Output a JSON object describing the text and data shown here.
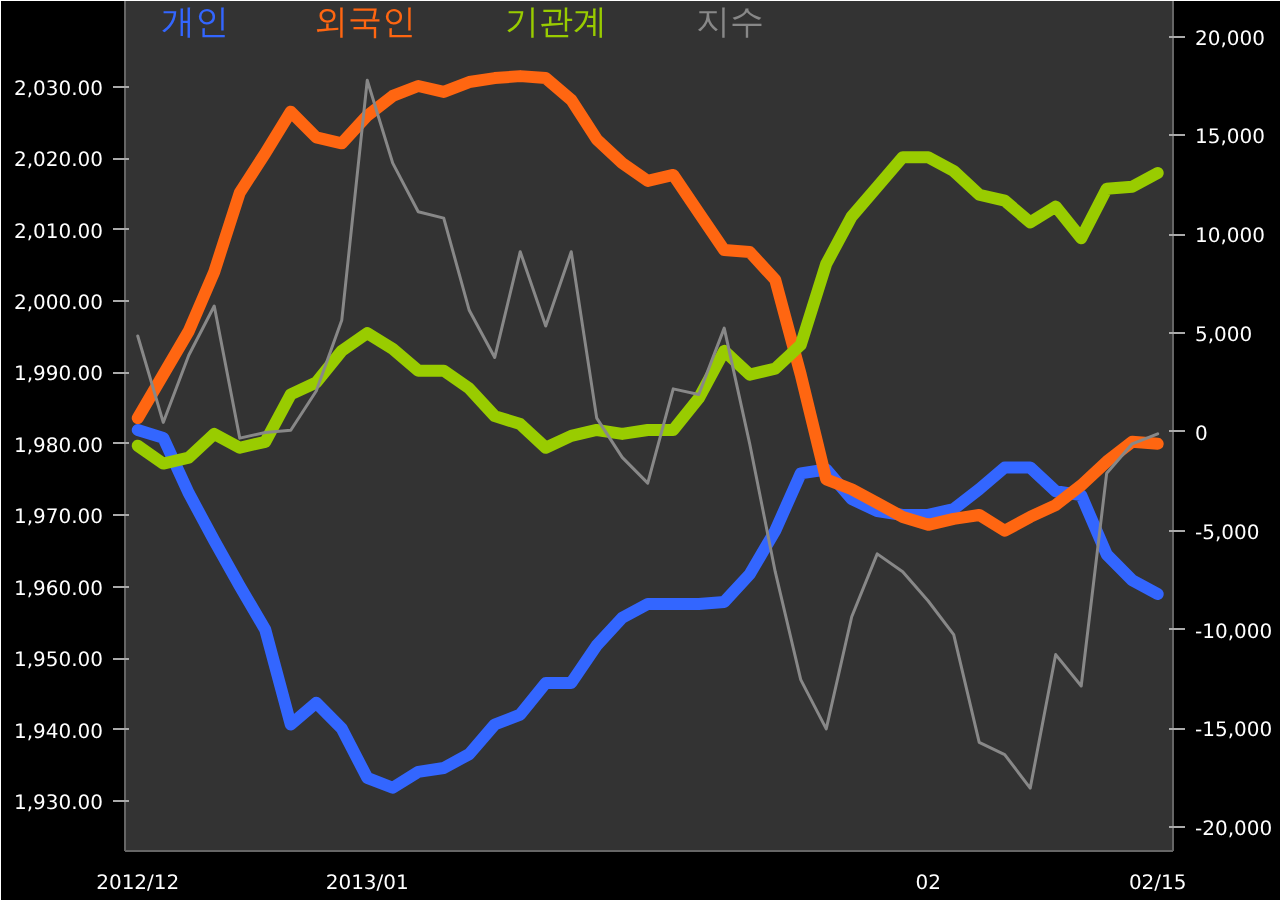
{
  "chart_data": {
    "type": "line",
    "categories": [
      "2012/12",
      null,
      null,
      null,
      null,
      null,
      null,
      null,
      null,
      "2013/01",
      null,
      null,
      null,
      null,
      null,
      null,
      null,
      null,
      null,
      null,
      null,
      null,
      null,
      null,
      null,
      null,
      null,
      null,
      null,
      null,
      null,
      "02",
      null,
      null,
      null,
      null,
      null,
      null,
      null,
      null,
      "02/15"
    ],
    "ylim": [
      1923,
      2042
    ],
    "yticks": [
      {
        "value": 1930,
        "label": "1,930.00"
      },
      {
        "value": 1940,
        "label": "1,940.00"
      },
      {
        "value": 1950,
        "label": "1,950.00"
      },
      {
        "value": 1960,
        "label": "1,960.00"
      },
      {
        "value": 1970,
        "label": "1,970.00"
      },
      {
        "value": 1980,
        "label": "1,980.00"
      },
      {
        "value": 1990,
        "label": "1,990.00"
      },
      {
        "value": 2000,
        "label": "2,000.00"
      },
      {
        "value": 2010,
        "label": "2,010.00"
      },
      {
        "value": 2020,
        "label": "2,020.00"
      },
      {
        "value": 2030,
        "label": "2,030.00"
      }
    ],
    "y2lim": [
      -21200,
      21800
    ],
    "y2ticks": [
      {
        "value": -20000,
        "label": "-20,000"
      },
      {
        "value": -15000,
        "label": "-15,000"
      },
      {
        "value": -10000,
        "label": "-10,000"
      },
      {
        "value": -5000,
        "label": "-5,000"
      },
      0,
      {
        "value": 5000,
        "label": "5,000"
      },
      {
        "value": 10000,
        "label": "10,000"
      },
      {
        "value": 15000,
        "label": "15,000"
      },
      {
        "value": 20000,
        "label": "20,000"
      }
    ],
    "series": [
      {
        "name": "개인",
        "color": "#3366ff",
        "axis": "y2",
        "values": [
          100,
          -300,
          -3100,
          -5500,
          -7800,
          -10000,
          -14800,
          -13700,
          -15000,
          -17500,
          -18000,
          -17200,
          -17000,
          -16300,
          -14800,
          -14300,
          -12700,
          -12700,
          -10800,
          -9400,
          -8700,
          -8700,
          -8700,
          -8600,
          -7200,
          -5000,
          -2100,
          -1900,
          -3400,
          -4000,
          -4200,
          -4200,
          -3900,
          -2900,
          -1800,
          -1800,
          -3000,
          -3200,
          -6200,
          -7500,
          -8200
        ]
      },
      {
        "name": "외국인",
        "color": "#ff6611",
        "axis": "y2",
        "values": [
          700,
          2900,
          5100,
          8100,
          12100,
          14100,
          16200,
          14900,
          14600,
          16000,
          17000,
          17500,
          17200,
          17700,
          17900,
          18000,
          17900,
          16800,
          14800,
          13600,
          12700,
          13000,
          11100,
          9200,
          9100,
          7700,
          2900,
          -2400,
          -2900,
          -3600,
          -4300,
          -4700,
          -4400,
          -4200,
          -5000,
          -4300,
          -3700,
          -2700,
          -1500,
          -500,
          -600
        ]
      },
      {
        "name": "기관계",
        "color": "#99cc00",
        "axis": "y2",
        "values": [
          -700,
          -1600,
          -1300,
          -100,
          -800,
          -500,
          1900,
          2500,
          4100,
          5000,
          4200,
          3100,
          3100,
          2200,
          800,
          400,
          -800,
          -200,
          100,
          -100,
          100,
          100,
          1700,
          4100,
          2900,
          3200,
          4400,
          8500,
          10900,
          12400,
          13900,
          13900,
          13200,
          12000,
          11700,
          10600,
          11400,
          9800,
          12300,
          12400,
          13100
        ]
      },
      {
        "name": "지수",
        "color": "#888888",
        "axis": "y",
        "values": [
          1995.1,
          1983.0,
          1992.4,
          1999.3,
          1980.8,
          1981.6,
          1981.9,
          1987.4,
          1997.3,
          2030.9,
          2019.3,
          2012.5,
          2011.6,
          1998.7,
          1992.1,
          2006.9,
          1996.5,
          2006.9,
          1983.6,
          1978.1,
          1974.5,
          1987.7,
          1986.9,
          1996.2,
          1980.0,
          1962.1,
          1947.0,
          1940.1,
          1955.8,
          1964.6,
          1962.1,
          1958.0,
          1953.3,
          1938.2,
          1936.5,
          1931.8,
          1950.5,
          1946.1,
          1975.9,
          1980.0,
          1981.4
        ]
      }
    ],
    "legend": "top left"
  }
}
